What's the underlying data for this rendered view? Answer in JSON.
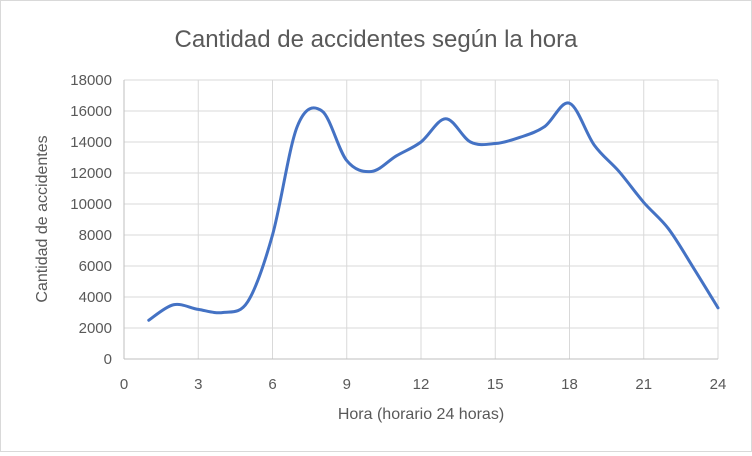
{
  "chart_data": {
    "type": "line",
    "title": "Cantidad de accidentes según la hora",
    "xlabel": "Hora (horario 24 horas)",
    "ylabel": "Cantidad de accidentes",
    "xlim": [
      0,
      24
    ],
    "ylim": [
      0,
      18000
    ],
    "xticks": [
      0,
      3,
      6,
      9,
      12,
      15,
      18,
      21,
      24
    ],
    "yticks": [
      0,
      2000,
      4000,
      6000,
      8000,
      10000,
      12000,
      14000,
      16000,
      18000
    ],
    "grid": true,
    "legend": "none",
    "smooth": true,
    "series": [
      {
        "color": "#4472c4",
        "x": [
          1,
          2,
          3,
          4,
          5,
          6,
          7,
          8,
          9,
          10,
          11,
          12,
          13,
          14,
          15,
          16,
          17,
          18,
          19,
          20,
          21,
          22,
          23,
          24
        ],
        "y": [
          2500,
          3500,
          3200,
          3000,
          3700,
          8000,
          15000,
          16000,
          12800,
          12100,
          13100,
          14000,
          15500,
          14000,
          13900,
          14300,
          15000,
          16500,
          13800,
          12100,
          10100,
          8400,
          5900,
          3300
        ]
      }
    ]
  }
}
